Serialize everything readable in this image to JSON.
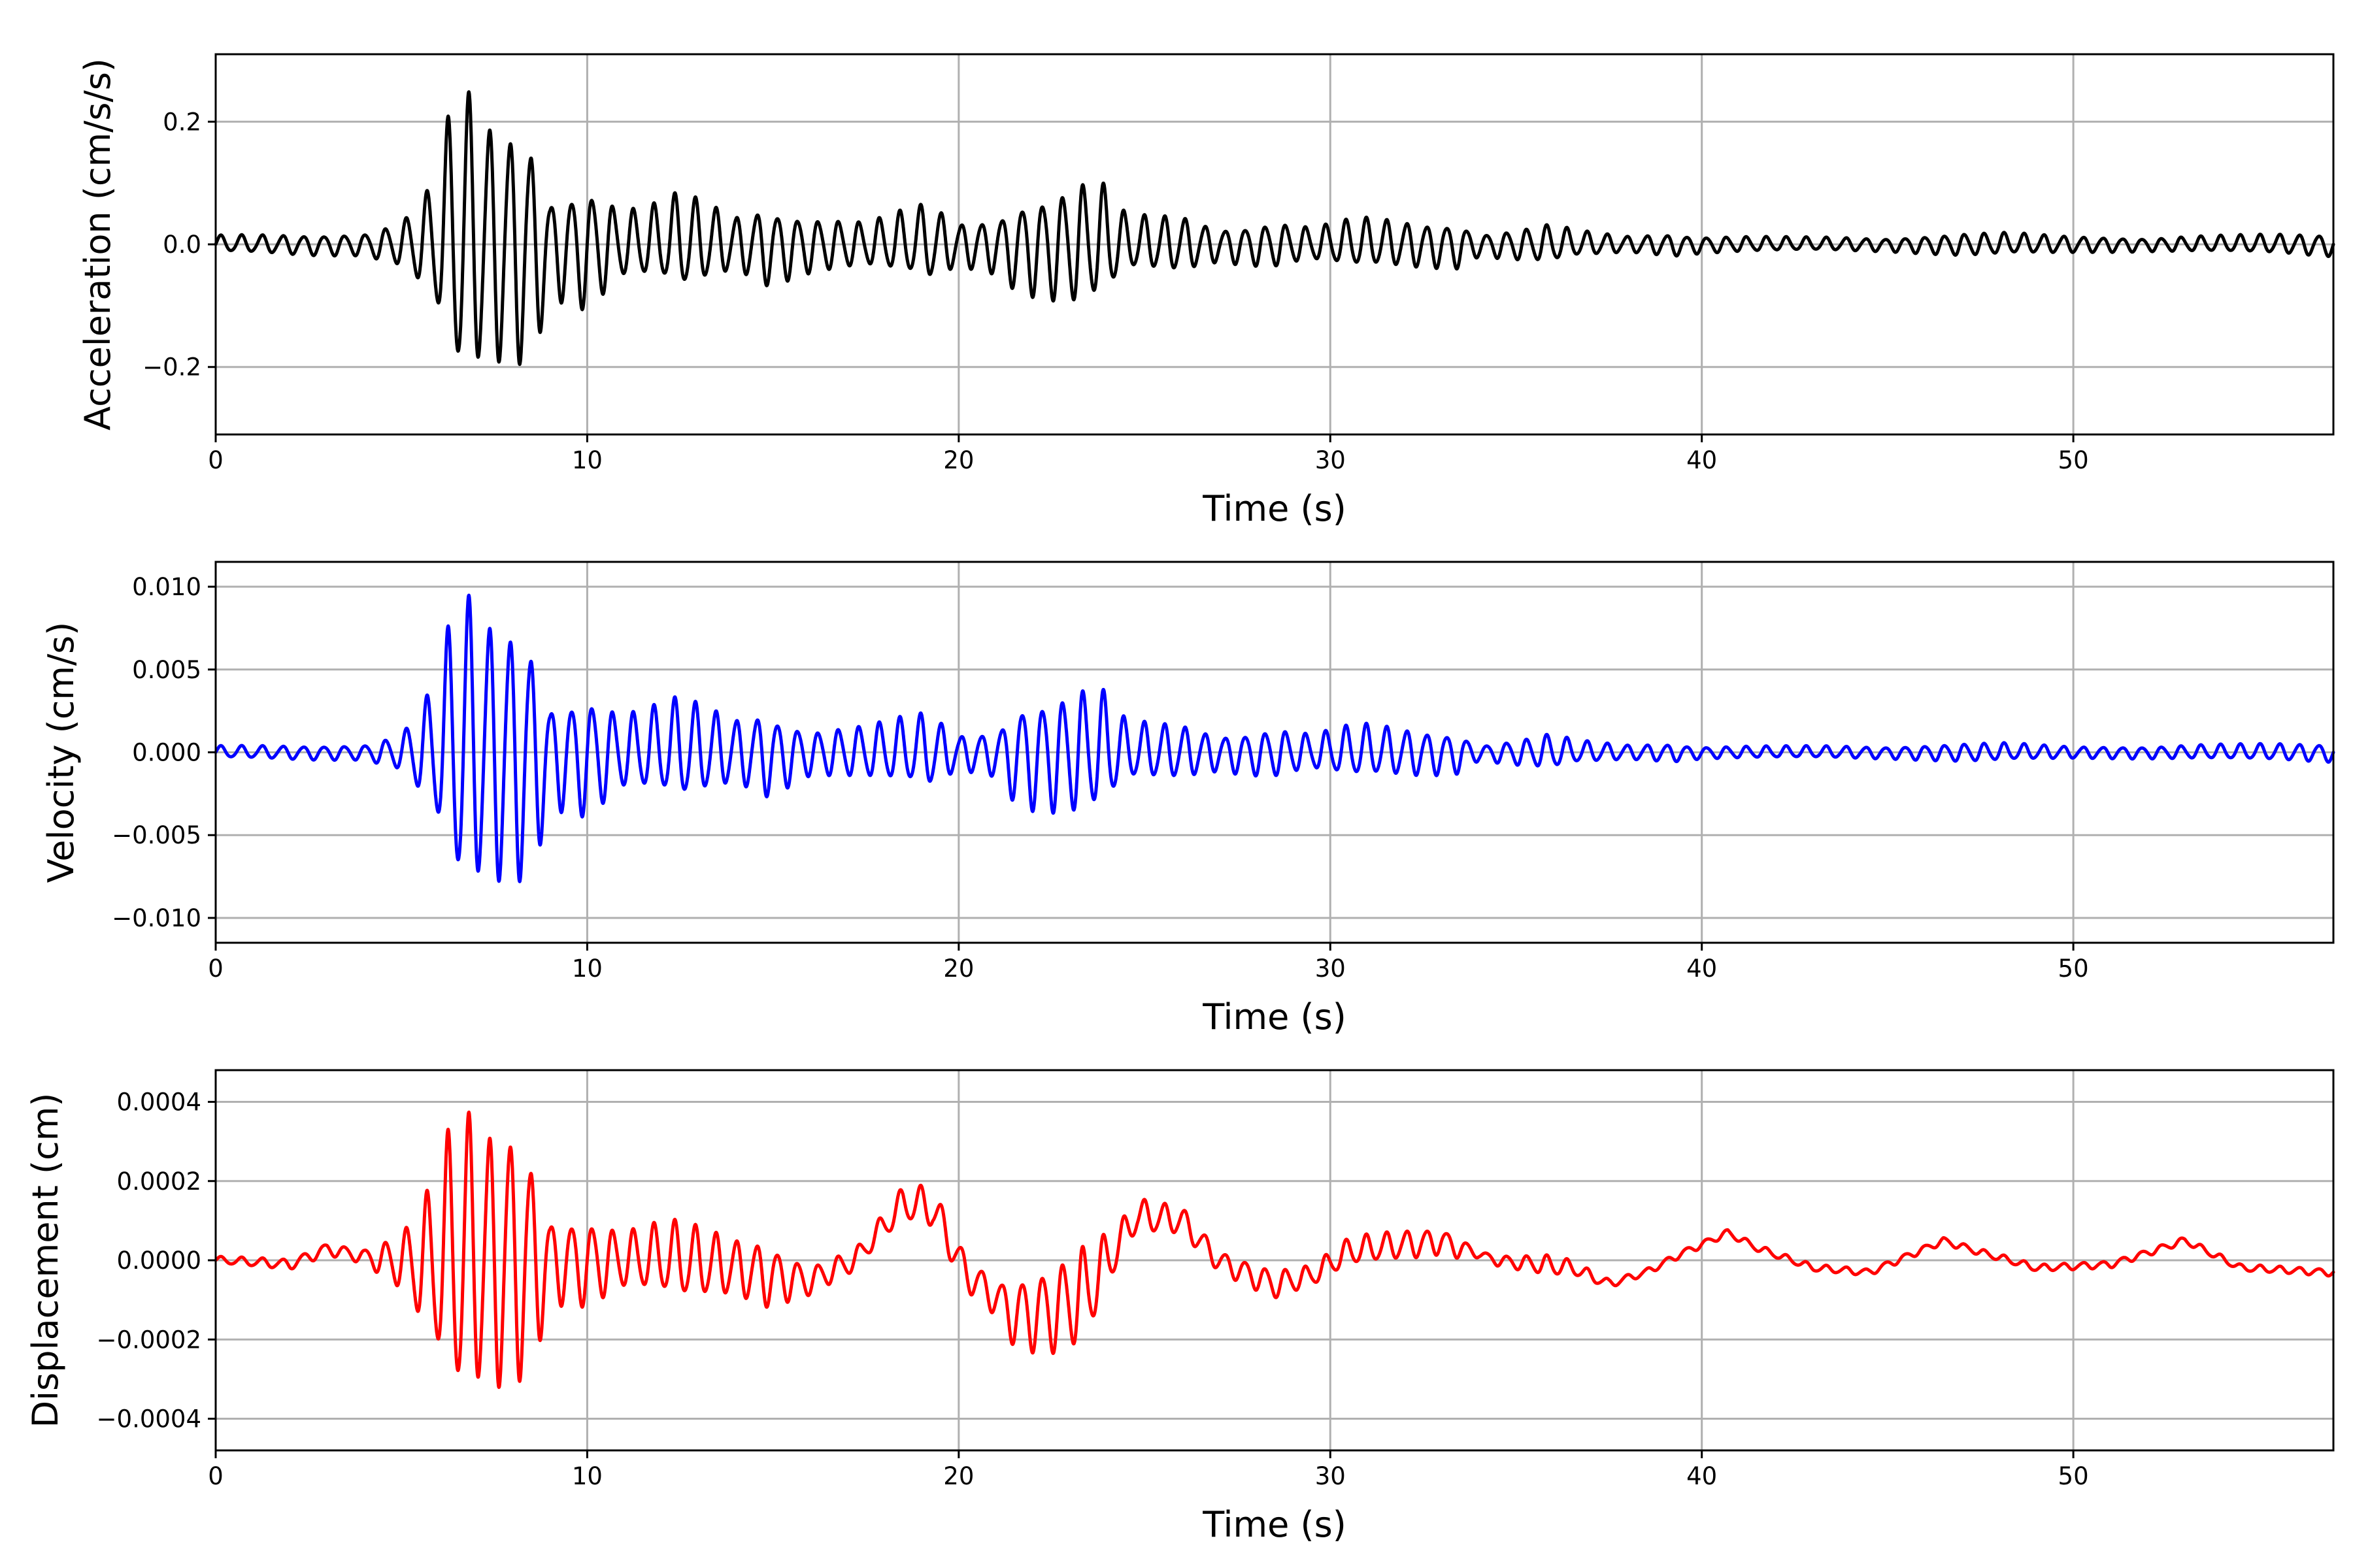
{
  "chart_data": [
    {
      "type": "line",
      "xlabel": "Time (s)",
      "ylabel": "Acceleration (cm/s/s)",
      "xlim": [
        0,
        57
      ],
      "ylim": [
        -0.31,
        0.31
      ],
      "x_ticks": [
        0,
        10,
        20,
        30,
        40,
        50
      ],
      "x_tick_labels": [
        "0",
        "10",
        "20",
        "30",
        "40",
        "50"
      ],
      "y_ticks": [
        -0.2,
        0.0,
        0.2
      ],
      "y_tick_labels": [
        "−0.2",
        "0.0",
        "0.2"
      ],
      "grid": true,
      "color": "#000000",
      "series": [
        {
          "envelope": [
            [
              0,
              0.015
            ],
            [
              4,
              0.02
            ],
            [
              5,
              0.04
            ],
            [
              5.8,
              0.1
            ],
            [
              6.3,
              0.22
            ],
            [
              6.6,
              0.28
            ],
            [
              7.3,
              0.22
            ],
            [
              7.8,
              0.22
            ],
            [
              8.5,
              0.2
            ],
            [
              9,
              0.09
            ],
            [
              10,
              0.11
            ],
            [
              11,
              0.06
            ],
            [
              12,
              0.07
            ],
            [
              12.5,
              0.09
            ],
            [
              14,
              0.05
            ],
            [
              14.8,
              0.07
            ],
            [
              16,
              0.05
            ],
            [
              17.5,
              0.04
            ],
            [
              19.2,
              0.07
            ],
            [
              20,
              0.04
            ],
            [
              21,
              0.05
            ],
            [
              21.6,
              0.08
            ],
            [
              23.3,
              0.11
            ],
            [
              24,
              0.1
            ],
            [
              24.5,
              0.05
            ],
            [
              26,
              0.05
            ],
            [
              27,
              0.03
            ],
            [
              28.5,
              0.04
            ],
            [
              29.5,
              0.03
            ],
            [
              30.7,
              0.045
            ],
            [
              32.5,
              0.04
            ],
            [
              33.5,
              0.04
            ],
            [
              34,
              0.02
            ],
            [
              36,
              0.035
            ],
            [
              36.5,
              0.025
            ],
            [
              38,
              0.015
            ],
            [
              39.2,
              0.02
            ],
            [
              40,
              0.015
            ],
            [
              43,
              0.012
            ],
            [
              45,
              0.012
            ],
            [
              47,
              0.02
            ],
            [
              48,
              0.02
            ],
            [
              50,
              0.015
            ],
            [
              52,
              0.012
            ],
            [
              54,
              0.015
            ],
            [
              57,
              0.02
            ]
          ],
          "freq_hz": [
            [
              0,
              1.8
            ],
            [
              9,
              1.8
            ],
            [
              57,
              1.9
            ]
          ],
          "min": -0.24,
          "max": 0.28
        }
      ]
    },
    {
      "type": "line",
      "xlabel": "Time (s)",
      "ylabel": "Velocity (cm/s)",
      "xlim": [
        0,
        57
      ],
      "ylim": [
        -0.0115,
        0.0115
      ],
      "x_ticks": [
        0,
        10,
        20,
        30,
        40,
        50
      ],
      "x_tick_labels": [
        "0",
        "10",
        "20",
        "30",
        "40",
        "50"
      ],
      "y_ticks": [
        -0.01,
        -0.005,
        0.0,
        0.005,
        0.01
      ],
      "y_tick_labels": [
        "−0.010",
        "−0.005",
        "0.000",
        "0.005",
        "0.010"
      ],
      "grid": true,
      "color": "#0000ff",
      "series": [
        {
          "envelope": [
            [
              0,
              0.0004
            ],
            [
              4,
              0.0005
            ],
            [
              5,
              0.0012
            ],
            [
              5.8,
              0.004
            ],
            [
              6.3,
              0.008
            ],
            [
              6.6,
              0.0105
            ],
            [
              7.3,
              0.0088
            ],
            [
              7.8,
              0.009
            ],
            [
              8.5,
              0.0078
            ],
            [
              9,
              0.0035
            ],
            [
              10,
              0.004
            ],
            [
              11,
              0.0025
            ],
            [
              12,
              0.003
            ],
            [
              12.5,
              0.0035
            ],
            [
              14,
              0.0022
            ],
            [
              14.8,
              0.0028
            ],
            [
              16,
              0.0015
            ],
            [
              17.5,
              0.0018
            ],
            [
              19.2,
              0.0025
            ],
            [
              20,
              0.0012
            ],
            [
              21,
              0.0015
            ],
            [
              21.6,
              0.0034
            ],
            [
              23.3,
              0.0042
            ],
            [
              24,
              0.0038
            ],
            [
              24.5,
              0.002
            ],
            [
              26,
              0.0018
            ],
            [
              27,
              0.0012
            ],
            [
              28.5,
              0.0016
            ],
            [
              29.5,
              0.0012
            ],
            [
              30.7,
              0.0018
            ],
            [
              32.5,
              0.0015
            ],
            [
              33.5,
              0.0013
            ],
            [
              34,
              0.0005
            ],
            [
              36,
              0.0012
            ],
            [
              36.5,
              0.0008
            ],
            [
              38,
              0.0005
            ],
            [
              39.2,
              0.0006
            ],
            [
              40,
              0.0004
            ],
            [
              43,
              0.0004
            ],
            [
              45,
              0.0004
            ],
            [
              47,
              0.0006
            ],
            [
              48,
              0.0006
            ],
            [
              50,
              0.0004
            ],
            [
              52,
              0.0004
            ],
            [
              54,
              0.0005
            ],
            [
              57,
              0.0006
            ]
          ],
          "freq_hz": [
            [
              0,
              1.8
            ],
            [
              9,
              1.8
            ],
            [
              57,
              1.9
            ]
          ],
          "min": -0.0099,
          "max": 0.0105
        }
      ]
    },
    {
      "type": "line",
      "xlabel": "Time (s)",
      "ylabel": "Displacement (cm)",
      "xlim": [
        0,
        57
      ],
      "ylim": [
        -0.00048,
        0.00048
      ],
      "x_ticks": [
        0,
        10,
        20,
        30,
        40,
        50
      ],
      "x_tick_labels": [
        "0",
        "10",
        "20",
        "30",
        "40",
        "50"
      ],
      "y_ticks": [
        -0.0004,
        -0.0002,
        0.0,
        0.0002,
        0.0004
      ],
      "y_tick_labels": [
        "−0.0004",
        "−0.0002",
        "0.0000",
        "0.0002",
        "0.0004"
      ],
      "grid": true,
      "color": "#ff0000",
      "series": [
        {
          "baseline": [
            [
              0,
              0.0
            ],
            [
              2,
              -1e-05
            ],
            [
              3,
              3e-05
            ],
            [
              4,
              1e-05
            ],
            [
              6,
              -2e-05
            ],
            [
              8,
              1e-05
            ],
            [
              10,
              0.0
            ],
            [
              12,
              0.0
            ],
            [
              14,
              -2e-05
            ],
            [
              16,
              -5e-05
            ],
            [
              17.2,
              0.0
            ],
            [
              18.5,
              0.00014
            ],
            [
              19.3,
              0.00013
            ],
            [
              20.2,
              -3e-05
            ],
            [
              21.5,
              -0.00013
            ],
            [
              22.5,
              -0.00012
            ],
            [
              23.5,
              -8e-05
            ],
            [
              24.8,
              0.00011
            ],
            [
              26,
              0.0001
            ],
            [
              27,
              0.0
            ],
            [
              28.5,
              -6e-05
            ],
            [
              29.5,
              -4e-05
            ],
            [
              30.5,
              2e-05
            ],
            [
              32,
              4e-05
            ],
            [
              33,
              5e-05
            ],
            [
              34.5,
              0.0
            ],
            [
              36.5,
              -2e-05
            ],
            [
              37.5,
              -6e-05
            ],
            [
              38.5,
              -3e-05
            ],
            [
              39.5,
              2e-05
            ],
            [
              40.7,
              7e-05
            ],
            [
              41.5,
              3e-05
            ],
            [
              43,
              -2e-05
            ],
            [
              44.5,
              -3e-05
            ],
            [
              46.5,
              5e-05
            ],
            [
              47.5,
              2e-05
            ],
            [
              49,
              -2e-05
            ],
            [
              51,
              -1e-05
            ],
            [
              53,
              5e-05
            ],
            [
              54.5,
              -2e-05
            ],
            [
              57,
              -3e-05
            ]
          ],
          "envelope": [
            [
              0,
              1e-05
            ],
            [
              4,
              2e-05
            ],
            [
              5,
              8e-05
            ],
            [
              5.8,
              0.00022
            ],
            [
              6.3,
              0.00036
            ],
            [
              6.6,
              0.00042
            ],
            [
              7.3,
              0.00036
            ],
            [
              7.8,
              0.00038
            ],
            [
              8.5,
              0.0003
            ],
            [
              9,
              0.00012
            ],
            [
              10,
              0.00012
            ],
            [
              11,
              8e-05
            ],
            [
              12,
              0.0001
            ],
            [
              12.5,
              0.00011
            ],
            [
              14,
              8e-05
            ],
            [
              14.8,
              9e-05
            ],
            [
              16,
              4e-05
            ],
            [
              17.5,
              3e-05
            ],
            [
              19.2,
              6e-05
            ],
            [
              20,
              5e-05
            ],
            [
              21,
              5e-05
            ],
            [
              21.6,
              0.0001
            ],
            [
              23.3,
              0.00014
            ],
            [
              24,
              8e-05
            ],
            [
              24.5,
              5e-05
            ],
            [
              26,
              4e-05
            ],
            [
              27,
              3e-05
            ],
            [
              28.5,
              4e-05
            ],
            [
              29.5,
              3e-05
            ],
            [
              30.7,
              4e-05
            ],
            [
              32.5,
              4e-05
            ],
            [
              33.5,
              3e-05
            ],
            [
              34,
              1e-05
            ],
            [
              36,
              3e-05
            ],
            [
              36.5,
              2e-05
            ],
            [
              38,
              1e-05
            ],
            [
              39.2,
              1e-05
            ],
            [
              40,
              1e-05
            ],
            [
              43,
              1e-05
            ],
            [
              45,
              1e-05
            ],
            [
              47,
              1e-05
            ],
            [
              48,
              1e-05
            ],
            [
              50,
              1e-05
            ],
            [
              52,
              1e-05
            ],
            [
              54,
              1e-05
            ],
            [
              57,
              1e-05
            ]
          ],
          "freq_hz": [
            [
              0,
              1.8
            ],
            [
              9,
              1.8
            ],
            [
              57,
              1.9
            ]
          ],
          "min": -0.00043,
          "max": 0.00044
        }
      ]
    }
  ]
}
